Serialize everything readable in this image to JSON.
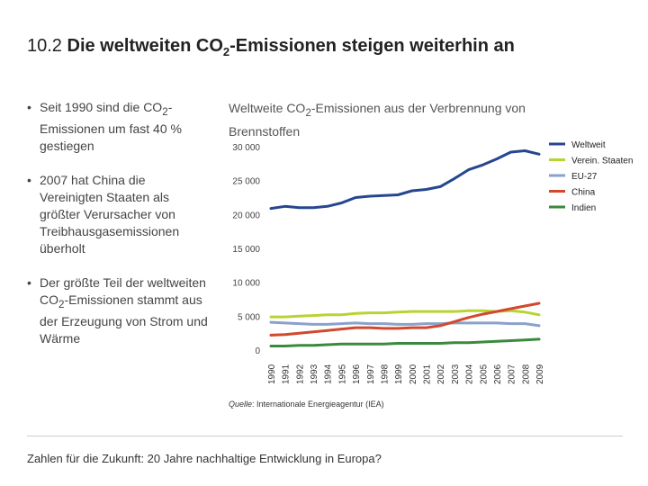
{
  "slide": {
    "number": "10.2",
    "title_pre": "Die weltweiten CO",
    "title_sub": "2",
    "title_post": "-Emissionen steigen weiterhin an"
  },
  "bullets": [
    {
      "pre": "Seit 1990 sind die CO",
      "sub": "2",
      "post": "-Emissionen um fast 40 % gestiegen"
    },
    {
      "pre": "2007 hat China die Vereinigten Staaten als größter Verursacher von Treibhausgasemissionen überholt",
      "sub": "",
      "post": ""
    },
    {
      "pre": "Der größte Teil der weltweiten CO",
      "sub": "2",
      "post": "-Emissionen stammt aus der Erzeugung von Strom und Wärme"
    }
  ],
  "chart_title": {
    "pre": "Weltweite CO",
    "sub": "2",
    "post": "-Emissionen aus der Verbrennung von Brennstoffen"
  },
  "source": {
    "label": "Quelle",
    "text": ": Internationale Energieagentur (IEA)"
  },
  "footer": "Zahlen für die Zukunft: 20 Jahre nachhaltige Entwicklung in Europa?",
  "chart_data": {
    "type": "line",
    "title": "Weltweite CO2-Emissionen aus der Verbrennung von Brennstoffen",
    "xlabel": "",
    "ylabel": "",
    "ylim": [
      0,
      30000
    ],
    "yticks": [
      0,
      5000,
      10000,
      15000,
      20000,
      25000,
      30000
    ],
    "ytick_labels": [
      "0",
      "5 000",
      "10 000",
      "15 000",
      "20 000",
      "25 000",
      "30 000"
    ],
    "categories": [
      "1990",
      "1991",
      "1992",
      "1993",
      "1994",
      "1995",
      "1996",
      "1997",
      "1998",
      "1999",
      "2000",
      "2001",
      "2002",
      "2003",
      "2004",
      "2005",
      "2006",
      "2007",
      "2008",
      "2009"
    ],
    "legend_position": "right",
    "series": [
      {
        "name": "Weltweit",
        "color": "#26468f",
        "values": [
          20900,
          21200,
          21000,
          21000,
          21200,
          21700,
          22500,
          22700,
          22800,
          22900,
          23500,
          23700,
          24100,
          25300,
          26600,
          27300,
          28200,
          29200,
          29400,
          28900
        ]
      },
      {
        "name": "Verein. Staaten",
        "color": "#b7d433",
        "values": [
          4900,
          4900,
          5000,
          5100,
          5200,
          5200,
          5400,
          5500,
          5500,
          5600,
          5700,
          5700,
          5700,
          5700,
          5800,
          5800,
          5700,
          5800,
          5600,
          5200
        ]
      },
      {
        "name": "EU-27",
        "color": "#8aa1cb",
        "values": [
          4100,
          4000,
          3900,
          3800,
          3800,
          3900,
          4000,
          3900,
          3900,
          3800,
          3800,
          3900,
          3900,
          4000,
          4000,
          4000,
          4000,
          3900,
          3900,
          3600
        ]
      },
      {
        "name": "China",
        "color": "#d1492d",
        "values": [
          2200,
          2300,
          2500,
          2700,
          2900,
          3100,
          3300,
          3300,
          3200,
          3200,
          3300,
          3300,
          3600,
          4200,
          4800,
          5300,
          5700,
          6100,
          6500,
          6900
        ]
      },
      {
        "name": "Indien",
        "color": "#3a8a3e",
        "values": [
          600,
          600,
          700,
          700,
          800,
          900,
          900,
          900,
          900,
          1000,
          1000,
          1000,
          1000,
          1100,
          1100,
          1200,
          1300,
          1400,
          1500,
          1600
        ]
      }
    ]
  }
}
